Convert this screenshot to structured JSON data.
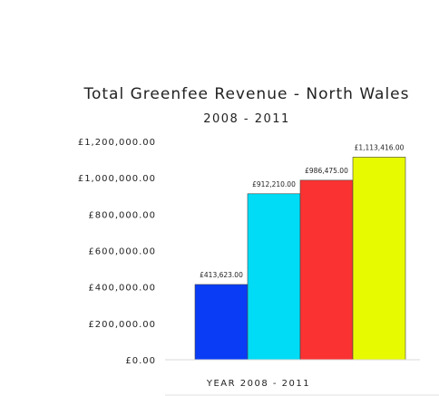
{
  "chart_data": {
    "type": "bar",
    "title": "Total Greenfee Revenue - North Wales",
    "subtitle": "2008 - 2011",
    "xlabel": "YEAR 2008 - 2011",
    "ylabel": "",
    "ylim": [
      0,
      1200000
    ],
    "yticks": [
      {
        "value": 0,
        "label": "£0.00"
      },
      {
        "value": 200000,
        "label": "£200,000.00"
      },
      {
        "value": 400000,
        "label": "£400,000.00"
      },
      {
        "value": 600000,
        "label": "£600,000.00"
      },
      {
        "value": 800000,
        "label": "£800,000.00"
      },
      {
        "value": 1000000,
        "label": "£1,000,000.00"
      },
      {
        "value": 1200000,
        "label": "£1,200,000.00"
      }
    ],
    "grid": false,
    "legend": "none",
    "bars": [
      {
        "value": 413623,
        "label": "£413,623.00",
        "color": "#0a3cf5"
      },
      {
        "value": 912210,
        "label": "£912,210.00",
        "color": "#00dcf5"
      },
      {
        "value": 986475,
        "label": "£986,475.00",
        "color": "#fa3232"
      },
      {
        "value": 1113416,
        "label": "£1,113,416.00",
        "color": "#e8fa00"
      }
    ]
  }
}
